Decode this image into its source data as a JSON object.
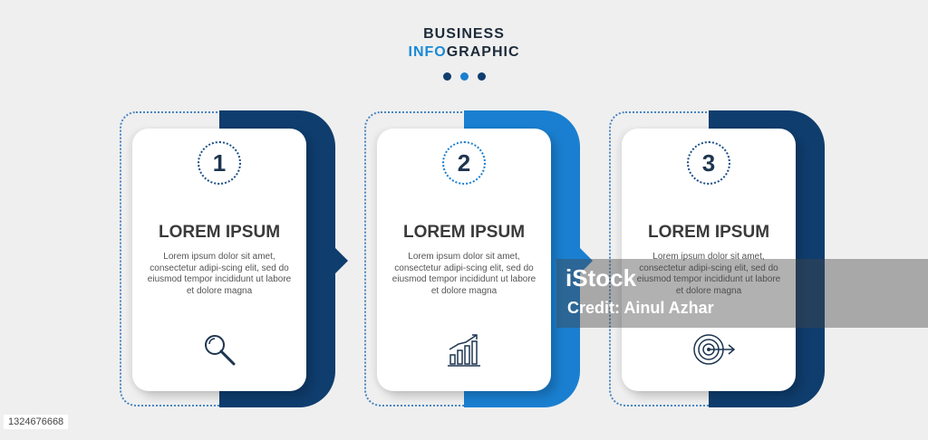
{
  "header": {
    "line1": "BUSINESS",
    "line2_accent": "INFO",
    "line2_rest": "GRAPHIC"
  },
  "colors": {
    "navy": "#0f3d6e",
    "blue": "#1a7fd0",
    "text": "#3a3a3a"
  },
  "steps": [
    {
      "number": "1",
      "title": "LOREM IPSUM",
      "body": "Lorem ipsum dolor sit amet, consectetur adipi-scing elit, sed do eiusmod tempor incididunt ut labore et dolore magna",
      "icon": "magnifier-icon",
      "color": "#0f3d6e"
    },
    {
      "number": "2",
      "title": "LOREM IPSUM",
      "body": "Lorem ipsum dolor sit amet, consectetur adipi-scing elit, sed do eiusmod tempor incididunt ut labore et dolore magna",
      "icon": "growth-chart-icon",
      "color": "#1a7fd0"
    },
    {
      "number": "3",
      "title": "LOREM IPSUM",
      "body": "Lorem ipsum dolor sit amet, consectetur adipi-scing elit, sed do eiusmod tempor incididunt ut labore et dolore magna",
      "icon": "target-icon",
      "color": "#0f3d6e"
    }
  ],
  "watermark": {
    "brand": "iStock",
    "credit": "Credit: Ainul Azhar"
  },
  "stock_id": "1324676668"
}
